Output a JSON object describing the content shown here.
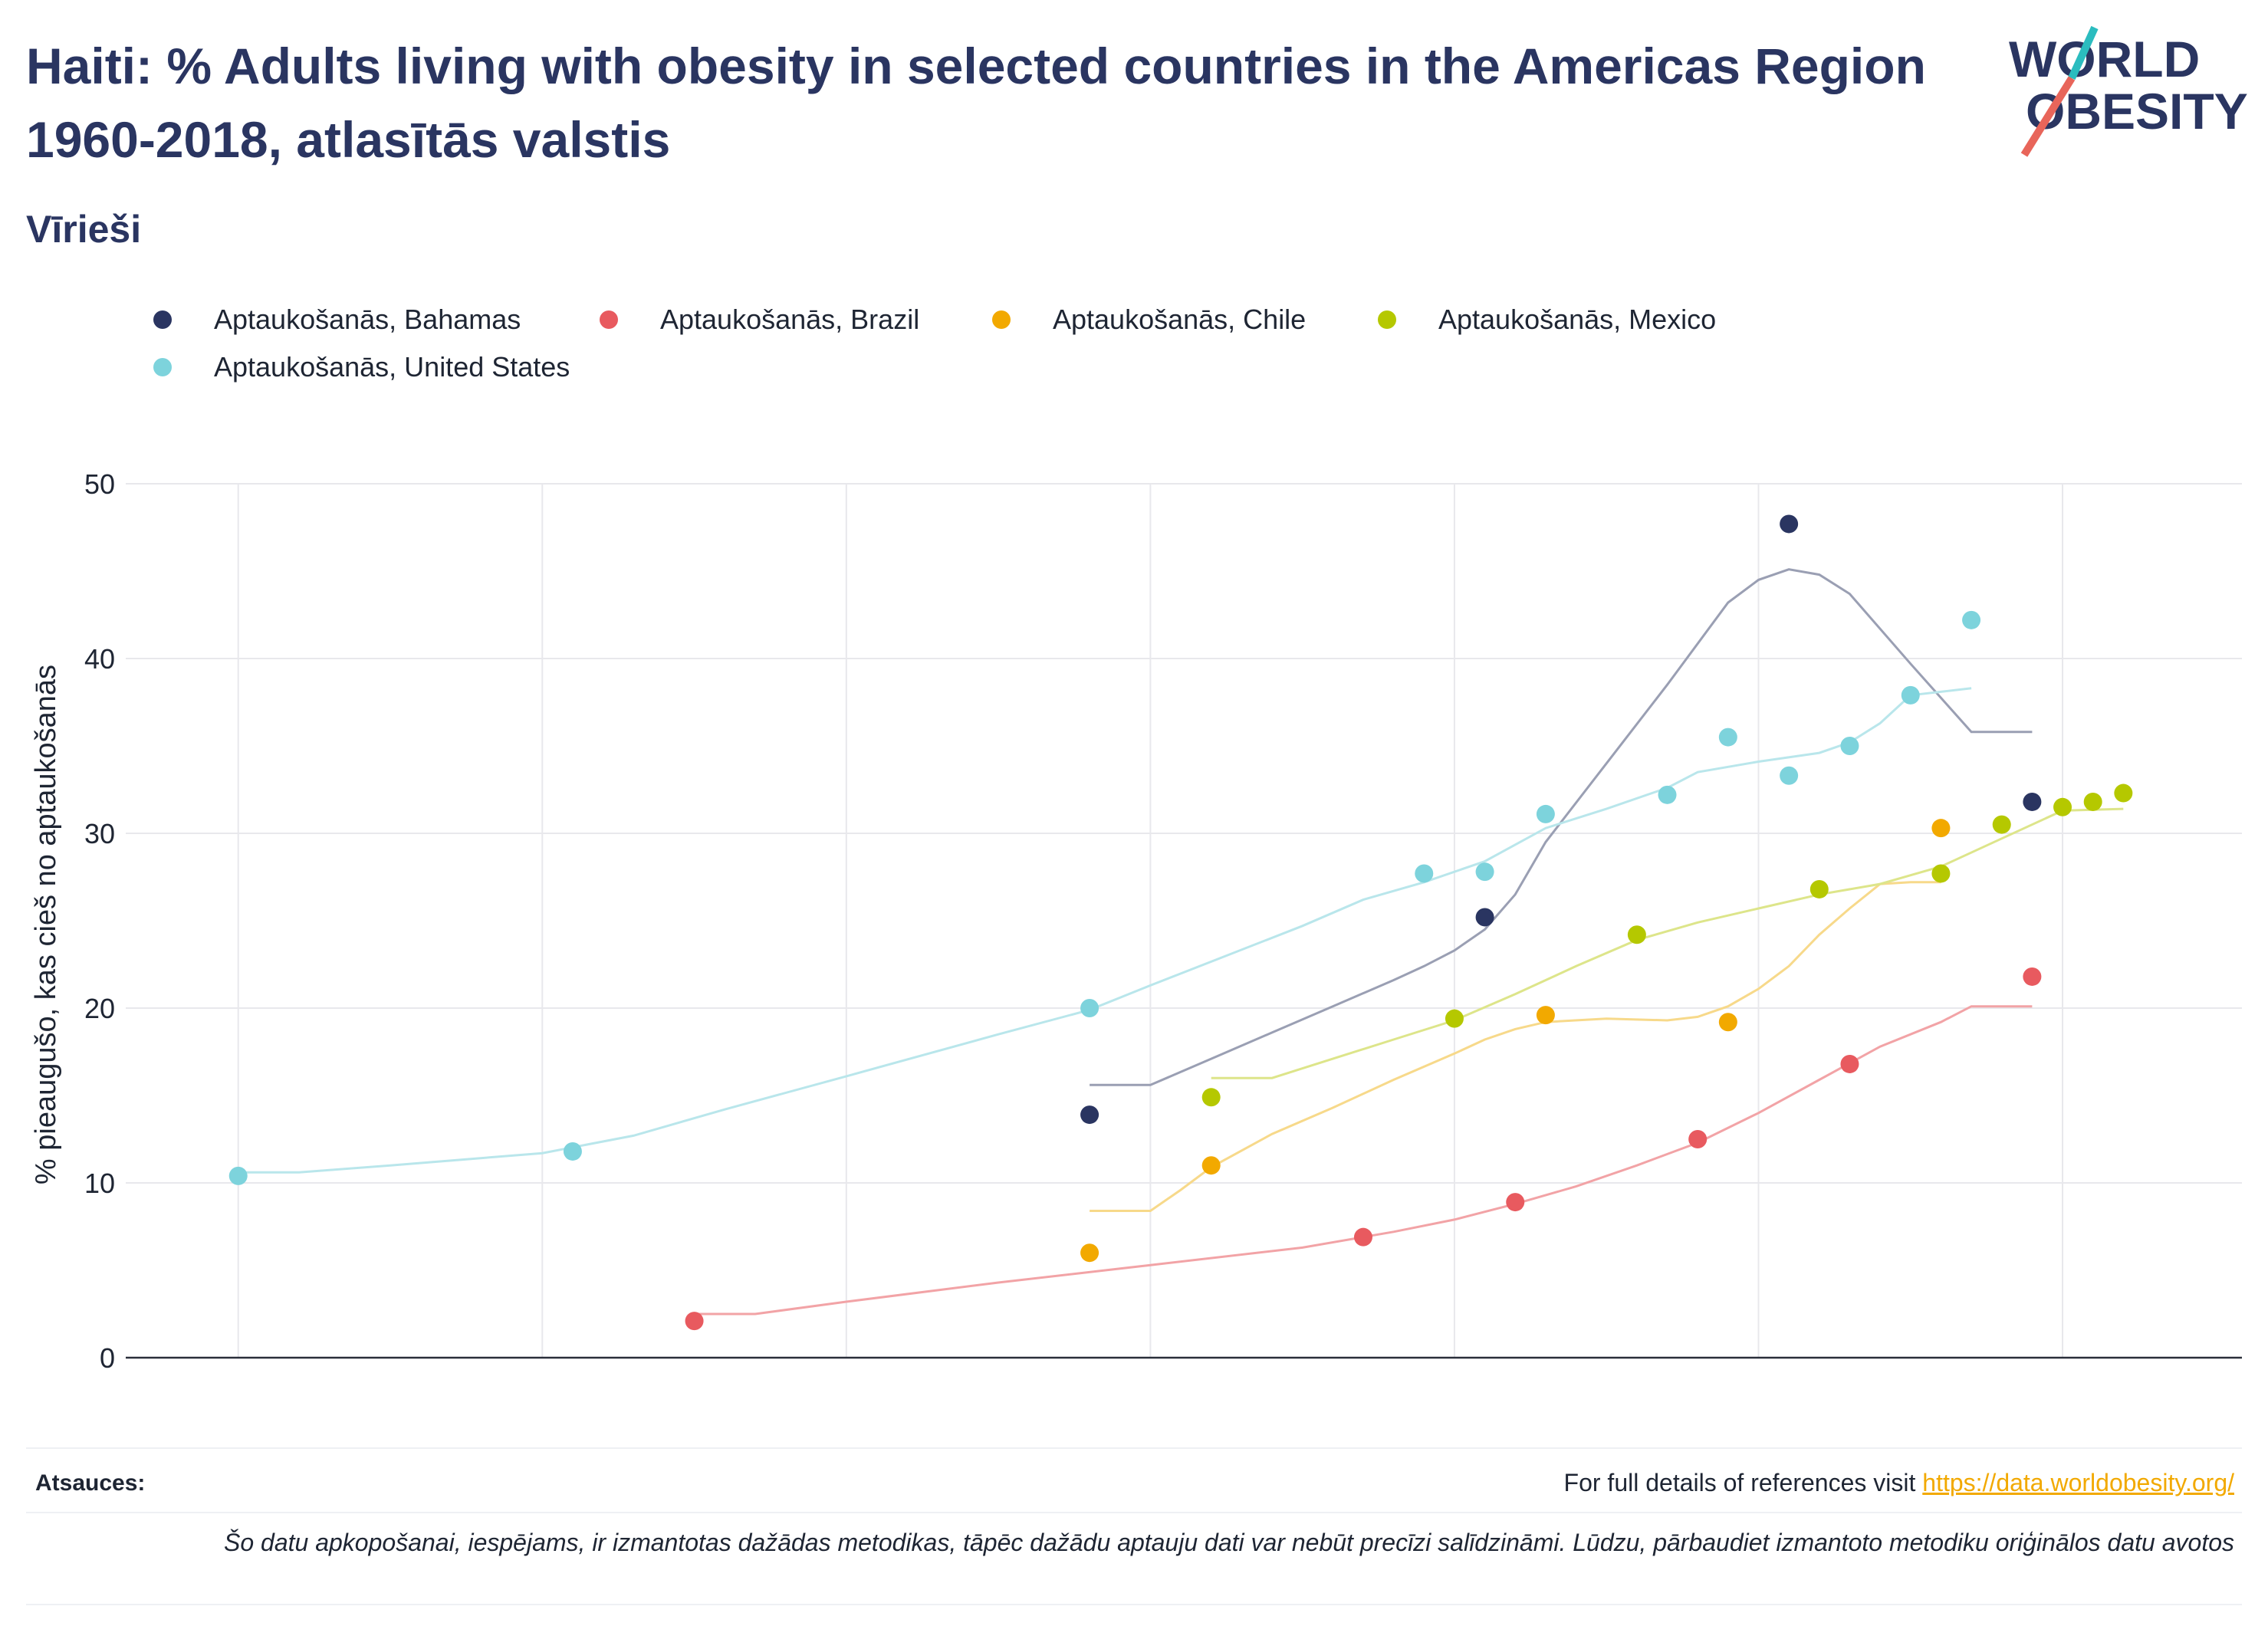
{
  "title": "Haiti: % Adults living with obesity in selected countries in the Americas Region 1960-2018, atlasītās valstis",
  "subtitle": "Vīrieši",
  "logo": {
    "line1": "WORLD",
    "line2": "OBESITY"
  },
  "footer": {
    "refs_label": "Atsauces:",
    "refs_text": "For full details of references visit ",
    "refs_link": "https://data.worldobesity.org/",
    "note": "Šo datu apkopošanai, iespējams, ir izmantotas dažādas metodikas, tāpēc dažādu aptauju dati var nebūt precīzi salīdzināmi. Lūdzu, pārbaudiet izmantoto metodiku oriģinālos datu avotos"
  },
  "chart_data": {
    "type": "scatter",
    "title": "Haiti: % Adults living with obesity in selected countries in the Americas Region 1960-2018, atlasītās valstis",
    "xlabel": "",
    "ylabel": "% pieaugušo, kas cieš no aptaukošanās",
    "xlim": [
      1956.3,
      2025.9
    ],
    "ylim": [
      0,
      50
    ],
    "xticks": [
      1960,
      1970,
      1980,
      1990,
      2000,
      2010,
      2020
    ],
    "yticks": [
      0,
      10,
      20,
      30,
      40,
      50
    ],
    "grid": true,
    "legend_position": "top",
    "series": [
      {
        "name": "Aptaukošanās, Bahamas",
        "color": "#2a3561",
        "trend_color": "#9a9fb3",
        "points": [
          [
            1988,
            13.9
          ],
          [
            2001,
            25.2
          ],
          [
            2011,
            47.7
          ],
          [
            2019,
            31.8
          ]
        ],
        "trend": [
          [
            1988,
            15.6
          ],
          [
            1990,
            15.6
          ],
          [
            1992,
            17.1
          ],
          [
            1994,
            18.6
          ],
          [
            1996,
            20.1
          ],
          [
            1998,
            21.6
          ],
          [
            1999,
            22.4
          ],
          [
            2000,
            23.3
          ],
          [
            2001,
            24.5
          ],
          [
            2002,
            26.5
          ],
          [
            2003,
            29.5
          ],
          [
            2005,
            34.0
          ],
          [
            2007,
            38.5
          ],
          [
            2009,
            43.2
          ],
          [
            2010,
            44.5
          ],
          [
            2011,
            45.1
          ],
          [
            2012,
            44.8
          ],
          [
            2013,
            43.7
          ],
          [
            2015,
            39.7
          ],
          [
            2017,
            35.8
          ],
          [
            2019,
            35.8
          ]
        ]
      },
      {
        "name": "Aptaukošanās, Brazil",
        "color": "#e85a5f",
        "trend_color": "#f2a3a6",
        "points": [
          [
            1975,
            2.1
          ],
          [
            1997,
            6.9
          ],
          [
            2002,
            8.9
          ],
          [
            2008,
            12.5
          ],
          [
            2013,
            16.8
          ],
          [
            2019,
            21.8
          ]
        ],
        "trend": [
          [
            1975,
            2.5
          ],
          [
            1977,
            2.5
          ],
          [
            1980,
            3.2
          ],
          [
            1985,
            4.3
          ],
          [
            1990,
            5.3
          ],
          [
            1995,
            6.3
          ],
          [
            1998,
            7.2
          ],
          [
            2000,
            7.9
          ],
          [
            2002,
            8.8
          ],
          [
            2004,
            9.8
          ],
          [
            2006,
            11.0
          ],
          [
            2008,
            12.3
          ],
          [
            2010,
            14.0
          ],
          [
            2012,
            15.9
          ],
          [
            2014,
            17.8
          ],
          [
            2016,
            19.2
          ],
          [
            2017,
            20.1
          ],
          [
            2019,
            20.1
          ]
        ]
      },
      {
        "name": "Aptaukošanās, Chile",
        "color": "#f2a900",
        "trend_color": "#f7d98a",
        "points": [
          [
            1988,
            6.0
          ],
          [
            1992,
            11.0
          ],
          [
            2003,
            19.6
          ],
          [
            2009,
            19.2
          ],
          [
            2016,
            30.3
          ]
        ],
        "trend": [
          [
            1988,
            8.4
          ],
          [
            1990,
            8.4
          ],
          [
            1991,
            9.6
          ],
          [
            1992,
            10.9
          ],
          [
            1994,
            12.8
          ],
          [
            1996,
            14.3
          ],
          [
            1998,
            15.9
          ],
          [
            2000,
            17.4
          ],
          [
            2001,
            18.2
          ],
          [
            2002,
            18.8
          ],
          [
            2003,
            19.2
          ],
          [
            2005,
            19.4
          ],
          [
            2007,
            19.3
          ],
          [
            2008,
            19.5
          ],
          [
            2009,
            20.1
          ],
          [
            2010,
            21.1
          ],
          [
            2011,
            22.4
          ],
          [
            2012,
            24.2
          ],
          [
            2013,
            25.7
          ],
          [
            2014,
            27.1
          ],
          [
            2015,
            27.2
          ],
          [
            2016,
            27.2
          ]
        ]
      },
      {
        "name": "Aptaukošanās, Mexico",
        "color": "#b5c800",
        "trend_color": "#dde58a",
        "points": [
          [
            1992,
            14.9
          ],
          [
            2000,
            19.4
          ],
          [
            2006,
            24.2
          ],
          [
            2012,
            26.8
          ],
          [
            2016,
            27.7
          ],
          [
            2018,
            30.5
          ],
          [
            2020,
            31.5
          ],
          [
            2021,
            31.8
          ],
          [
            2022,
            32.3
          ]
        ],
        "trend": [
          [
            1992,
            16.0
          ],
          [
            1994,
            16.0
          ],
          [
            1996,
            17.1
          ],
          [
            1998,
            18.2
          ],
          [
            2000,
            19.3
          ],
          [
            2002,
            20.8
          ],
          [
            2004,
            22.4
          ],
          [
            2006,
            23.9
          ],
          [
            2008,
            24.9
          ],
          [
            2010,
            25.7
          ],
          [
            2012,
            26.5
          ],
          [
            2014,
            27.1
          ],
          [
            2015,
            27.6
          ],
          [
            2016,
            28.1
          ],
          [
            2018,
            29.7
          ],
          [
            2020,
            31.3
          ],
          [
            2022,
            31.4
          ]
        ]
      },
      {
        "name": "Aptaukošanās, United States",
        "color": "#7dd3dc",
        "trend_color": "#b9e6eb",
        "points": [
          [
            1960,
            10.4
          ],
          [
            1971,
            11.8
          ],
          [
            1988,
            20.0
          ],
          [
            1999,
            27.7
          ],
          [
            2001,
            27.8
          ],
          [
            2003,
            31.1
          ],
          [
            2007,
            32.2
          ],
          [
            2009,
            35.5
          ],
          [
            2011,
            33.3
          ],
          [
            2013,
            35.0
          ],
          [
            2015,
            37.9
          ],
          [
            2017,
            42.2
          ]
        ],
        "trend": [
          [
            1960,
            10.6
          ],
          [
            1962,
            10.6
          ],
          [
            1965,
            11.0
          ],
          [
            1970,
            11.7
          ],
          [
            1973,
            12.7
          ],
          [
            1976,
            14.2
          ],
          [
            1980,
            16.1
          ],
          [
            1985,
            18.5
          ],
          [
            1988,
            19.9
          ],
          [
            1990,
            21.3
          ],
          [
            1995,
            24.7
          ],
          [
            1997,
            26.2
          ],
          [
            1999,
            27.2
          ],
          [
            2001,
            28.4
          ],
          [
            2003,
            30.3
          ],
          [
            2005,
            31.4
          ],
          [
            2007,
            32.6
          ],
          [
            2008,
            33.5
          ],
          [
            2010,
            34.1
          ],
          [
            2012,
            34.6
          ],
          [
            2013,
            35.2
          ],
          [
            2014,
            36.3
          ],
          [
            2015,
            37.9
          ],
          [
            2017,
            38.3
          ]
        ]
      }
    ]
  }
}
